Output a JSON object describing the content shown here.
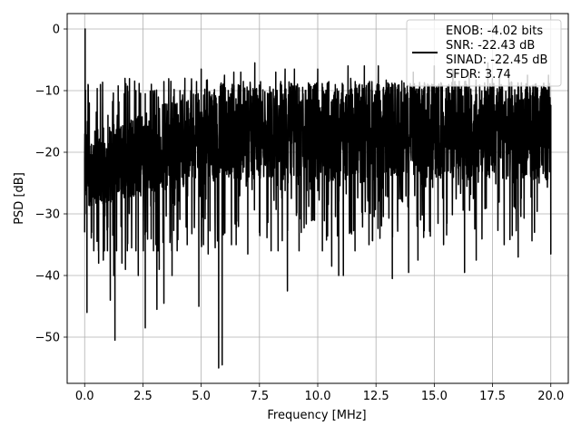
{
  "chart_data": {
    "type": "line",
    "xlabel": "Frequency [MHz]",
    "ylabel": "PSD [dB]",
    "xlim": [
      -0.75,
      20.75
    ],
    "ylim": [
      -57.5,
      2.5
    ],
    "xticks": [
      0.0,
      2.5,
      5.0,
      7.5,
      10.0,
      12.5,
      15.0,
      17.5,
      20.0
    ],
    "xtick_labels": [
      "0.0",
      "2.5",
      "5.0",
      "7.5",
      "10.0",
      "12.5",
      "15.0",
      "17.5",
      "20.0"
    ],
    "yticks": [
      0,
      -10,
      -20,
      -30,
      -40,
      -50
    ],
    "ytick_labels": [
      "0",
      "−10",
      "−20",
      "−30",
      "−40",
      "−50"
    ],
    "grid": true,
    "legend_placement": "top-right",
    "line_color": "#000000",
    "series": [
      {
        "legend_lines": [
          "ENOB: -4.02 bits",
          "SNR: -22.43 dB",
          "SINAD: -22.45 dB",
          "SFDR: 3.74"
        ],
        "noise_floor_db": -19.5,
        "x_range": [
          0.0,
          20.0
        ],
        "points": [
          [
            0.0,
            -33.0
          ],
          [
            0.02,
            0.0
          ],
          [
            0.04,
            -10.0
          ],
          [
            0.06,
            -20.0
          ],
          [
            0.08,
            -30.0
          ],
          [
            0.1,
            -46.0
          ],
          [
            0.12,
            -15.0
          ],
          [
            0.15,
            -25.0
          ],
          [
            0.2,
            -12.0
          ],
          [
            0.25,
            -28.0
          ],
          [
            0.3,
            -33.0
          ],
          [
            0.5,
            -13.5
          ],
          [
            0.6,
            -35.0
          ],
          [
            0.6,
            -38.0
          ],
          [
            0.8,
            -37.5
          ],
          [
            1.0,
            -14.0
          ],
          [
            1.1,
            -44.0
          ],
          [
            1.25,
            -40.0
          ],
          [
            1.3,
            -50.5
          ],
          [
            1.4,
            -14.0
          ],
          [
            1.6,
            -38.0
          ],
          [
            1.7,
            -10.5
          ],
          [
            1.75,
            -39.0
          ],
          [
            2.2,
            -10.0
          ],
          [
            2.3,
            -40.0
          ],
          [
            2.6,
            -10.5
          ],
          [
            2.6,
            -36.0
          ],
          [
            2.6,
            -48.5
          ],
          [
            3.0,
            -10.0
          ],
          [
            3.1,
            -45.5
          ],
          [
            3.2,
            -39.0
          ],
          [
            3.4,
            -44.5
          ],
          [
            3.7,
            -8.5
          ],
          [
            3.75,
            -40.0
          ],
          [
            4.3,
            -8.0
          ],
          [
            4.4,
            -35.0
          ],
          [
            4.9,
            -45.0
          ],
          [
            5.0,
            -6.5
          ],
          [
            5.1,
            -35.0
          ],
          [
            5.3,
            -36.5
          ],
          [
            5.6,
            -35.5
          ],
          [
            5.75,
            -55.0
          ],
          [
            5.9,
            -54.5
          ],
          [
            6.0,
            -7.5
          ],
          [
            6.3,
            -35.0
          ],
          [
            6.4,
            -7.0
          ],
          [
            6.5,
            -35.0
          ],
          [
            6.7,
            -7.0
          ],
          [
            7.0,
            -36.5
          ],
          [
            7.3,
            -5.5
          ],
          [
            7.5,
            -33.0
          ],
          [
            8.0,
            -36.0
          ],
          [
            8.2,
            -7.0
          ],
          [
            8.3,
            -36.0
          ],
          [
            8.6,
            -6.5
          ],
          [
            8.7,
            -42.5
          ],
          [
            9.0,
            -6.5
          ],
          [
            9.2,
            -36.0
          ],
          [
            10.0,
            -6.5
          ],
          [
            10.2,
            -36.0
          ],
          [
            10.6,
            -38.5
          ],
          [
            10.9,
            -40.0
          ],
          [
            11.1,
            -40.0
          ],
          [
            11.3,
            -6.0
          ],
          [
            11.6,
            -36.0
          ],
          [
            12.0,
            -6.0
          ],
          [
            12.2,
            -35.0
          ],
          [
            12.6,
            -6.0
          ],
          [
            13.2,
            -40.5
          ],
          [
            13.9,
            -39.5
          ],
          [
            14.1,
            -7.0
          ],
          [
            14.3,
            -37.5
          ],
          [
            15.0,
            -6.0
          ],
          [
            15.4,
            -35.0
          ],
          [
            15.8,
            -6.5
          ],
          [
            16.3,
            -39.5
          ],
          [
            16.5,
            -7.0
          ],
          [
            16.8,
            -37.5
          ],
          [
            17.3,
            -5.5
          ],
          [
            17.8,
            -7.0
          ],
          [
            18.0,
            -35.0
          ],
          [
            18.2,
            -7.0
          ],
          [
            18.6,
            -37.0
          ],
          [
            19.0,
            -7.5
          ],
          [
            19.3,
            -33.0
          ],
          [
            19.9,
            -7.5
          ],
          [
            20.0,
            -36.5
          ]
        ]
      }
    ]
  }
}
